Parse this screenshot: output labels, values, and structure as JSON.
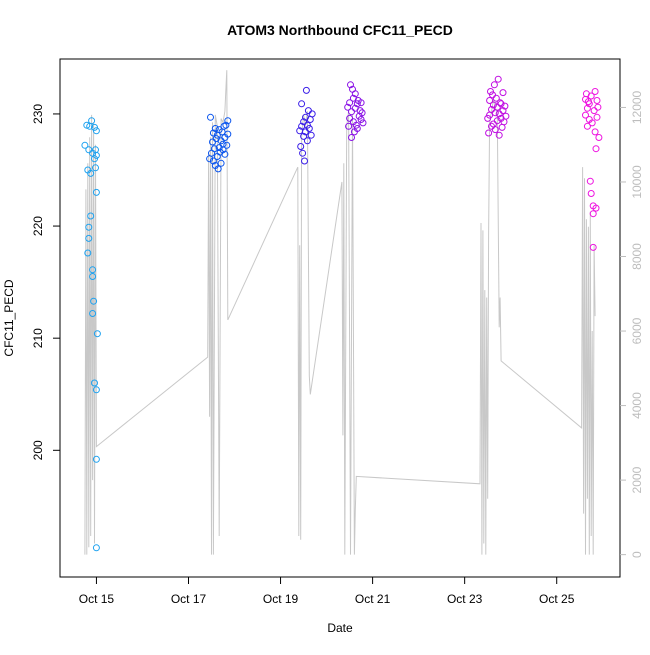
{
  "chart_data": {
    "type": "scatter",
    "title": "ATOM3 Northbound CFC11_PECD",
    "xlabel": "Date",
    "ylabel": "CFC11_PECD",
    "x_ticks": [
      "Oct 15",
      "Oct 17",
      "Oct 19",
      "Oct 21",
      "Oct 23",
      "Oct 25"
    ],
    "y_left_ticks": [
      200,
      210,
      220,
      230
    ],
    "y_right_ticks": [
      0,
      2000,
      4000,
      6000,
      8000,
      10000,
      12000
    ],
    "xlim": [
      "2017-10-14 05:00",
      "2017-10-26 09:00"
    ],
    "ylim_left": [
      188.7,
      234.9
    ],
    "ylim_right": [
      -600,
      13300
    ],
    "grid": false,
    "altitude_line_color": "#c8c8c8",
    "point_color_ramp": [
      "#1ea2f0",
      "#0a55ee",
      "#3a1ee8",
      "#8a12e6",
      "#c00ee2",
      "#ee14e0"
    ],
    "series": [
      {
        "values": [
          [
            "2017-10-14 18:00",
            227.2
          ],
          [
            "2017-10-14 19:00",
            229.0
          ],
          [
            "2017-10-14 19:30",
            225.0
          ],
          [
            "2017-10-14 20:00",
            226.8
          ],
          [
            "2017-10-14 20:30",
            228.9
          ],
          [
            "2017-10-14 20:00",
            219.9
          ],
          [
            "2017-10-14 20:00",
            218.9
          ],
          [
            "2017-10-14 19:30",
            217.6
          ],
          [
            "2017-10-14 21:00",
            224.7
          ],
          [
            "2017-10-14 21:30",
            229.4
          ],
          [
            "2017-10-14 21:00",
            220.9
          ],
          [
            "2017-10-14 22:00",
            226.5
          ],
          [
            "2017-10-14 22:00",
            216.1
          ],
          [
            "2017-10-14 22:00",
            215.5
          ],
          [
            "2017-10-14 22:30",
            213.3
          ],
          [
            "2017-10-14 22:00",
            212.2
          ],
          [
            "2017-10-14 23:00",
            228.8
          ],
          [
            "2017-10-14 23:00",
            226.0
          ],
          [
            "2017-10-14 23:30",
            225.2
          ],
          [
            "2017-10-14 23:30",
            226.8
          ],
          [
            "2017-10-14 23:00",
            206.0
          ],
          [
            "2017-10-15 00:00",
            205.4
          ],
          [
            "2017-10-15 00:00",
            228.5
          ],
          [
            "2017-10-15 00:00",
            226.3
          ],
          [
            "2017-10-15 00:30",
            210.4
          ],
          [
            "2017-10-15 00:00",
            199.2
          ],
          [
            "2017-10-15 00:00",
            191.3
          ],
          [
            "2017-10-15 00:00",
            223.0
          ]
        ]
      },
      {
        "values": [
          [
            "2017-10-17 11:00",
            226.0
          ],
          [
            "2017-10-17 11:30",
            229.7
          ],
          [
            "2017-10-17 12:00",
            226.5
          ],
          [
            "2017-10-17 12:30",
            227.5
          ],
          [
            "2017-10-17 13:00",
            225.8
          ],
          [
            "2017-10-17 13:00",
            228.3
          ],
          [
            "2017-10-17 13:30",
            226.9
          ],
          [
            "2017-10-17 14:00",
            225.4
          ],
          [
            "2017-10-17 14:00",
            228.7
          ],
          [
            "2017-10-17 14:30",
            227.8
          ],
          [
            "2017-10-17 15:00",
            226.2
          ],
          [
            "2017-10-17 15:00",
            228.1
          ],
          [
            "2017-10-17 15:30",
            225.1
          ],
          [
            "2017-10-17 16:00",
            227.0
          ],
          [
            "2017-10-17 16:00",
            228.6
          ],
          [
            "2017-10-17 16:30",
            226.6
          ],
          [
            "2017-10-17 17:00",
            225.6
          ],
          [
            "2017-10-17 17:00",
            227.6
          ],
          [
            "2017-10-17 17:30",
            228.4
          ],
          [
            "2017-10-17 18:00",
            226.8
          ],
          [
            "2017-10-17 18:00",
            227.3
          ],
          [
            "2017-10-17 18:30",
            228.9
          ],
          [
            "2017-10-17 19:00",
            226.4
          ],
          [
            "2017-10-17 19:00",
            227.9
          ],
          [
            "2017-10-17 19:30",
            229.0
          ],
          [
            "2017-10-17 20:00",
            227.2
          ],
          [
            "2017-10-17 20:30",
            229.4
          ],
          [
            "2017-10-17 20:30",
            228.2
          ]
        ]
      },
      {
        "values": [
          [
            "2017-10-19 10:00",
            228.5
          ],
          [
            "2017-10-19 10:30",
            227.1
          ],
          [
            "2017-10-19 11:00",
            230.9
          ],
          [
            "2017-10-19 11:00",
            228.9
          ],
          [
            "2017-10-19 11:30",
            226.5
          ],
          [
            "2017-10-19 12:00",
            229.3
          ],
          [
            "2017-10-19 12:00",
            228.0
          ],
          [
            "2017-10-19 12:30",
            225.8
          ],
          [
            "2017-10-19 13:00",
            229.7
          ],
          [
            "2017-10-19 13:00",
            228.4
          ],
          [
            "2017-10-19 13:30",
            232.1
          ],
          [
            "2017-10-19 14:00",
            229.0
          ],
          [
            "2017-10-19 14:00",
            227.6
          ],
          [
            "2017-10-19 14:30",
            230.3
          ],
          [
            "2017-10-19 15:00",
            228.7
          ],
          [
            "2017-10-19 15:30",
            229.5
          ],
          [
            "2017-10-19 16:00",
            228.1
          ],
          [
            "2017-10-19 16:30",
            230.0
          ]
        ]
      },
      {
        "values": [
          [
            "2017-10-20 11:00",
            230.6
          ],
          [
            "2017-10-20 11:30",
            228.9
          ],
          [
            "2017-10-20 12:00",
            231.0
          ],
          [
            "2017-10-20 12:00",
            229.6
          ],
          [
            "2017-10-20 12:30",
            232.6
          ],
          [
            "2017-10-20 13:00",
            230.2
          ],
          [
            "2017-10-20 13:00",
            227.9
          ],
          [
            "2017-10-20 13:30",
            232.2
          ],
          [
            "2017-10-20 14:00",
            229.3
          ],
          [
            "2017-10-20 14:00",
            231.4
          ],
          [
            "2017-10-20 14:30",
            228.4
          ],
          [
            "2017-10-20 15:00",
            230.5
          ],
          [
            "2017-10-20 15:00",
            231.8
          ],
          [
            "2017-10-20 15:30",
            229.0
          ],
          [
            "2017-10-20 16:00",
            230.9
          ],
          [
            "2017-10-20 16:00",
            228.7
          ],
          [
            "2017-10-20 16:30",
            231.2
          ],
          [
            "2017-10-20 17:00",
            229.8
          ],
          [
            "2017-10-20 17:30",
            230.3
          ],
          [
            "2017-10-20 18:00",
            229.5
          ],
          [
            "2017-10-20 18:00",
            231.0
          ],
          [
            "2017-10-20 18:30",
            230.1
          ],
          [
            "2017-10-20 19:00",
            229.2
          ]
        ]
      },
      {
        "values": [
          [
            "2017-10-23 12:00",
            229.6
          ],
          [
            "2017-10-23 12:30",
            228.3
          ],
          [
            "2017-10-23 13:00",
            231.2
          ],
          [
            "2017-10-23 13:00",
            229.9
          ],
          [
            "2017-10-23 13:30",
            232.0
          ],
          [
            "2017-10-23 14:00",
            228.9
          ],
          [
            "2017-10-23 14:00",
            230.4
          ],
          [
            "2017-10-23 14:30",
            231.7
          ],
          [
            "2017-10-23 15:00",
            229.1
          ],
          [
            "2017-10-23 15:00",
            230.8
          ],
          [
            "2017-10-23 15:30",
            232.6
          ],
          [
            "2017-10-23 16:00",
            228.6
          ],
          [
            "2017-10-23 16:00",
            230.1
          ],
          [
            "2017-10-23 16:30",
            231.4
          ],
          [
            "2017-10-23 17:00",
            229.4
          ],
          [
            "2017-10-23 17:00",
            230.6
          ],
          [
            "2017-10-23 17:30",
            233.1
          ],
          [
            "2017-10-23 18:00",
            228.1
          ],
          [
            "2017-10-23 18:00",
            230.0
          ],
          [
            "2017-10-23 18:30",
            231.0
          ],
          [
            "2017-10-23 19:00",
            229.6
          ],
          [
            "2017-10-23 19:00",
            230.9
          ],
          [
            "2017-10-23 19:30",
            228.8
          ],
          [
            "2017-10-23 20:00",
            230.3
          ],
          [
            "2017-10-23 20:00",
            231.9
          ],
          [
            "2017-10-23 20:30",
            229.3
          ],
          [
            "2017-10-23 21:00",
            230.7
          ],
          [
            "2017-10-23 21:30",
            229.8
          ]
        ]
      },
      {
        "values": [
          [
            "2017-10-25 15:00",
            231.3
          ],
          [
            "2017-10-25 15:00",
            229.9
          ],
          [
            "2017-10-25 15:30",
            231.8
          ],
          [
            "2017-10-25 16:00",
            230.5
          ],
          [
            "2017-10-25 16:00",
            228.9
          ],
          [
            "2017-10-25 16:30",
            231.1
          ],
          [
            "2017-10-25 17:00",
            229.5
          ],
          [
            "2017-10-25 17:00",
            230.9
          ],
          [
            "2017-10-25 17:30",
            224.0
          ],
          [
            "2017-10-25 18:00",
            222.9
          ],
          [
            "2017-10-25 18:00",
            231.6
          ],
          [
            "2017-10-25 18:30",
            229.2
          ],
          [
            "2017-10-25 19:00",
            221.8
          ],
          [
            "2017-10-25 19:00",
            221.1
          ],
          [
            "2017-10-25 19:00",
            218.1
          ],
          [
            "2017-10-25 19:30",
            230.3
          ],
          [
            "2017-10-25 20:00",
            232.0
          ],
          [
            "2017-10-25 20:00",
            228.4
          ],
          [
            "2017-10-25 20:30",
            226.9
          ],
          [
            "2017-10-25 20:30",
            221.6
          ],
          [
            "2017-10-25 21:00",
            231.2
          ],
          [
            "2017-10-25 21:00",
            229.7
          ],
          [
            "2017-10-25 21:30",
            230.6
          ],
          [
            "2017-10-25 22:00",
            227.9
          ]
        ]
      }
    ],
    "altitude_line": [
      [
        "2017-10-14 18:00",
        0
      ],
      [
        "2017-10-14 18:30",
        9800
      ],
      [
        "2017-10-14 19:00",
        0
      ],
      [
        "2017-10-14 19:30",
        10500
      ],
      [
        "2017-10-14 20:00",
        200
      ],
      [
        "2017-10-14 20:30",
        11200
      ],
      [
        "2017-10-14 21:00",
        500
      ],
      [
        "2017-10-14 21:30",
        11800
      ],
      [
        "2017-10-14 22:00",
        2000
      ],
      [
        "2017-10-14 22:30",
        11600
      ],
      [
        "2017-10-14 23:00",
        300
      ],
      [
        "2017-10-14 23:30",
        11000
      ],
      [
        "2017-10-15 00:00",
        2900
      ],
      [
        "2017-10-17 10:00",
        5300
      ],
      [
        "2017-10-17 10:30",
        10800
      ],
      [
        "2017-10-17 11:00",
        3700
      ],
      [
        "2017-10-17 11:30",
        11200
      ],
      [
        "2017-10-17 12:00",
        0
      ],
      [
        "2017-10-17 12:30",
        11600
      ],
      [
        "2017-10-17 13:00",
        0
      ],
      [
        "2017-10-17 14:00",
        11800
      ],
      [
        "2017-10-17 15:00",
        11500
      ],
      [
        "2017-10-17 16:00",
        500
      ],
      [
        "2017-10-17 17:00",
        11700
      ],
      [
        "2017-10-17 18:00",
        11600
      ],
      [
        "2017-10-17 19:00",
        11900
      ],
      [
        "2017-10-17 19:30",
        12500
      ],
      [
        "2017-10-17 20:00",
        13000
      ],
      [
        "2017-10-17 20:30",
        6300
      ],
      [
        "2017-10-19 09:00",
        10400
      ],
      [
        "2017-10-19 09:30",
        500
      ],
      [
        "2017-10-19 10:00",
        8300
      ],
      [
        "2017-10-19 10:30",
        400
      ],
      [
        "2017-10-19 11:00",
        11200
      ],
      [
        "2017-10-19 12:00",
        11800
      ],
      [
        "2017-10-19 13:00",
        11500
      ],
      [
        "2017-10-19 14:00",
        11900
      ],
      [
        "2017-10-19 15:00",
        4800
      ],
      [
        "2017-10-19 15:30",
        4300
      ],
      [
        "2017-10-20 08:00",
        10000
      ],
      [
        "2017-10-20 08:30",
        3200
      ],
      [
        "2017-10-20 09:00",
        10500
      ],
      [
        "2017-10-20 09:30",
        0
      ],
      [
        "2017-10-20 10:30",
        11500
      ],
      [
        "2017-10-20 11:30",
        11900
      ],
      [
        "2017-10-20 12:30",
        0
      ],
      [
        "2017-10-20 13:30",
        11800
      ],
      [
        "2017-10-20 14:30",
        0
      ],
      [
        "2017-10-20 15:00",
        1200
      ],
      [
        "2017-10-20 15:30",
        2100
      ],
      [
        "2017-10-23 08:00",
        1900
      ],
      [
        "2017-10-23 08:30",
        8900
      ],
      [
        "2017-10-23 09:00",
        0
      ],
      [
        "2017-10-23 09:30",
        8700
      ],
      [
        "2017-10-23 10:00",
        300
      ],
      [
        "2017-10-23 10:30",
        7100
      ],
      [
        "2017-10-23 11:00",
        0
      ],
      [
        "2017-10-23 11:30",
        6900
      ],
      [
        "2017-10-23 12:00",
        1500
      ],
      [
        "2017-10-23 12:30",
        8600
      ],
      [
        "2017-10-23 13:00",
        11600
      ],
      [
        "2017-10-23 14:00",
        11900
      ],
      [
        "2017-10-23 15:00",
        12200
      ],
      [
        "2017-10-23 16:00",
        12000
      ],
      [
        "2017-10-23 17:00",
        11800
      ],
      [
        "2017-10-23 18:00",
        6100
      ],
      [
        "2017-10-23 18:30",
        6900
      ],
      [
        "2017-10-23 19:00",
        5200
      ],
      [
        "2017-10-25 13:00",
        3400
      ],
      [
        "2017-10-25 13:30",
        10400
      ],
      [
        "2017-10-25 14:00",
        1100
      ],
      [
        "2017-10-25 14:30",
        10100
      ],
      [
        "2017-10-25 15:00",
        0
      ],
      [
        "2017-10-25 15:30",
        9000
      ],
      [
        "2017-10-25 16:00",
        1500
      ],
      [
        "2017-10-25 16:30",
        8800
      ],
      [
        "2017-10-25 17:00",
        0
      ],
      [
        "2017-10-25 17:30",
        9200
      ],
      [
        "2017-10-25 18:00",
        500
      ],
      [
        "2017-10-25 18:30",
        6000
      ],
      [
        "2017-10-25 19:00",
        0
      ],
      [
        "2017-10-25 19:30",
        8300
      ],
      [
        "2017-10-25 20:00",
        6400
      ]
    ]
  }
}
